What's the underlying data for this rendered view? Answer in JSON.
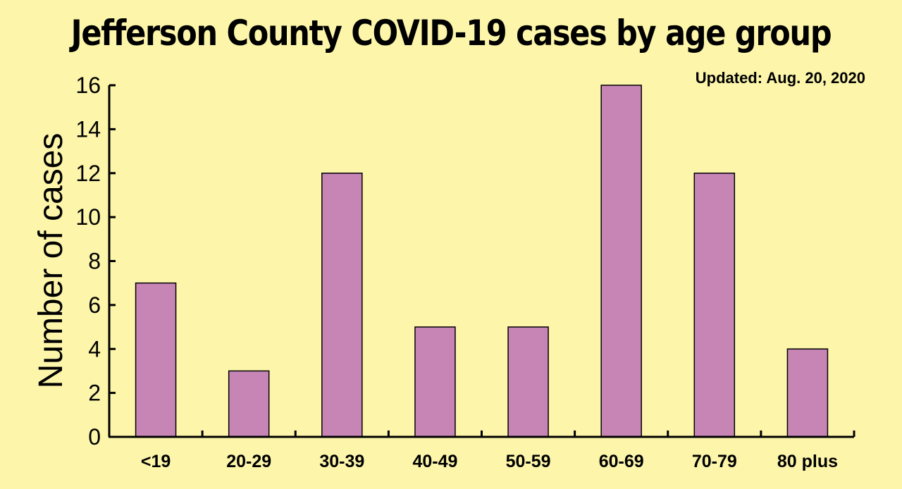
{
  "chart_data": {
    "type": "bar",
    "title": "Jefferson County COVID-19 cases by age group",
    "subtitle": "Updated: Aug. 20, 2020",
    "xlabel": "",
    "ylabel": "Number of cases",
    "categories": [
      "<19",
      "20-29",
      "30-39",
      "40-49",
      "50-59",
      "60-69",
      "70-79",
      "80 plus"
    ],
    "values": [
      7,
      3,
      12,
      5,
      5,
      16,
      12,
      4
    ],
    "ylim": [
      0,
      16
    ],
    "yticks": [
      0,
      2,
      4,
      6,
      8,
      10,
      12,
      14,
      16
    ],
    "grid": false,
    "colors": {
      "background": "#fcf5aa",
      "bar": "#c785b6",
      "axis": "#000000"
    }
  }
}
